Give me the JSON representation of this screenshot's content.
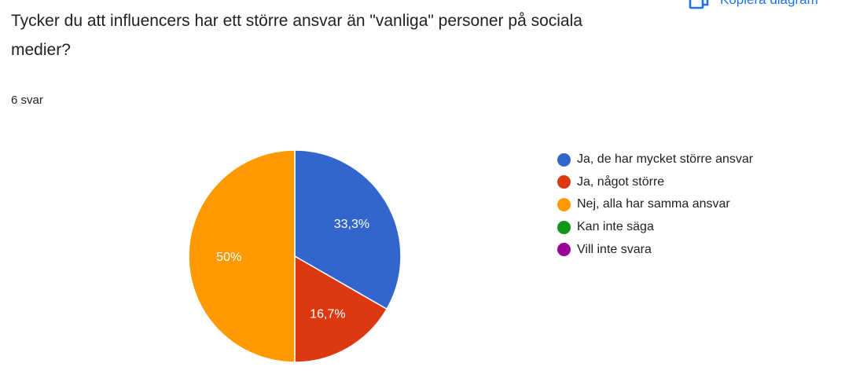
{
  "question": {
    "title": "Tycker du att influencers har ett större ansvar än \"vanliga\" personer på sociala medier?",
    "response_count": "6 svar"
  },
  "toolbar": {
    "copy_label": "Kopiera diagram",
    "copy_icon": "copy-icon"
  },
  "colors": {
    "accent": "#1a73e8"
  },
  "chart_data": {
    "type": "pie",
    "title": "",
    "slices": [
      {
        "label": "Ja, de har mycket större ansvar",
        "value": 33.3,
        "display": "33,3%",
        "color": "#3366cc"
      },
      {
        "label": "Ja, något större",
        "value": 16.7,
        "display": "16,7%",
        "color": "#dc3912"
      },
      {
        "label": "Nej, alla har samma ansvar",
        "value": 50,
        "display": "50%",
        "color": "#ff9900"
      },
      {
        "label": "Kan inte säga",
        "value": 0,
        "display": "",
        "color": "#109618"
      },
      {
        "label": "Vill inte svara",
        "value": 0,
        "display": "",
        "color": "#990099"
      }
    ],
    "legend_position": "right"
  }
}
